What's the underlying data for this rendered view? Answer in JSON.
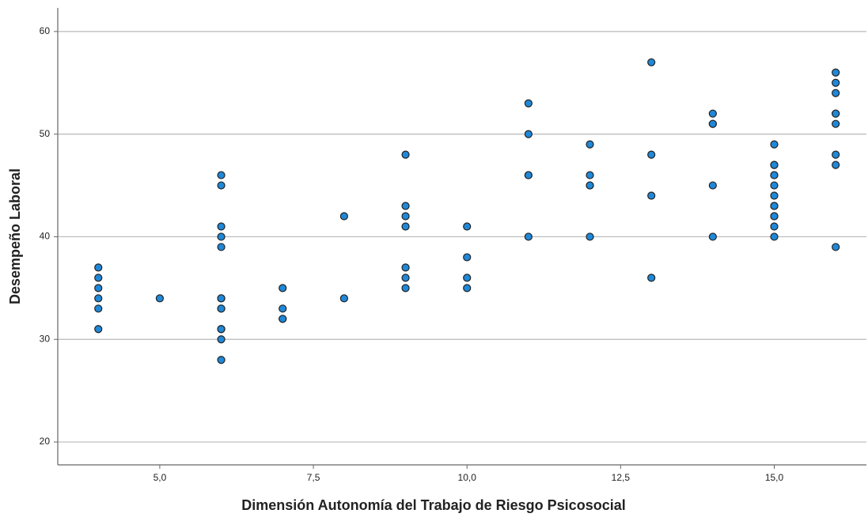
{
  "chart_data": {
    "type": "scatter",
    "x_label": "Dimensión Autonomía del Trabajo de Riesgo Psicosocial",
    "y_label": "Desempeño Laboral",
    "x": [
      4,
      4,
      4,
      4,
      4,
      4,
      5,
      6,
      6,
      6,
      6,
      6,
      6,
      6,
      6,
      6,
      6,
      6,
      6,
      6,
      7,
      7,
      7,
      7,
      8,
      8,
      9,
      9,
      9,
      9,
      9,
      9,
      9,
      10,
      10,
      10,
      10,
      11,
      11,
      11,
      11,
      11,
      12,
      12,
      12,
      12,
      12,
      13,
      13,
      13,
      13,
      14,
      14,
      14,
      14,
      14,
      15,
      15,
      15,
      15,
      15,
      15,
      15,
      15,
      15,
      15,
      15,
      15,
      15,
      16,
      16,
      16,
      16,
      16,
      16,
      16,
      16,
      16
    ],
    "values": [
      37,
      36,
      35,
      34,
      33,
      31,
      34,
      46,
      45,
      41,
      40,
      39,
      34,
      34,
      33,
      33,
      31,
      31,
      30,
      28,
      35,
      33,
      32,
      32,
      42,
      34,
      48,
      43,
      42,
      41,
      37,
      36,
      35,
      41,
      38,
      36,
      35,
      53,
      50,
      46,
      46,
      40,
      49,
      46,
      45,
      45,
      40,
      57,
      48,
      44,
      36,
      52,
      51,
      51,
      45,
      40,
      49,
      47,
      47,
      46,
      46,
      45,
      44,
      43,
      43,
      42,
      42,
      41,
      40,
      56,
      55,
      54,
      52,
      52,
      51,
      48,
      47,
      39
    ],
    "color": "#1f88d8",
    "xlim": [
      3.34,
      16.5
    ],
    "xticks": [
      {
        "value": 5,
        "label": "5,0"
      },
      {
        "value": 7.5,
        "label": "7,5"
      },
      {
        "value": 10,
        "label": "10,0"
      },
      {
        "value": 12.5,
        "label": "12,5"
      },
      {
        "value": 15,
        "label": "15,0"
      }
    ],
    "ylim": [
      17.77,
      62.3
    ],
    "yticks": [
      20,
      30,
      40,
      50,
      60
    ],
    "grid": true
  }
}
